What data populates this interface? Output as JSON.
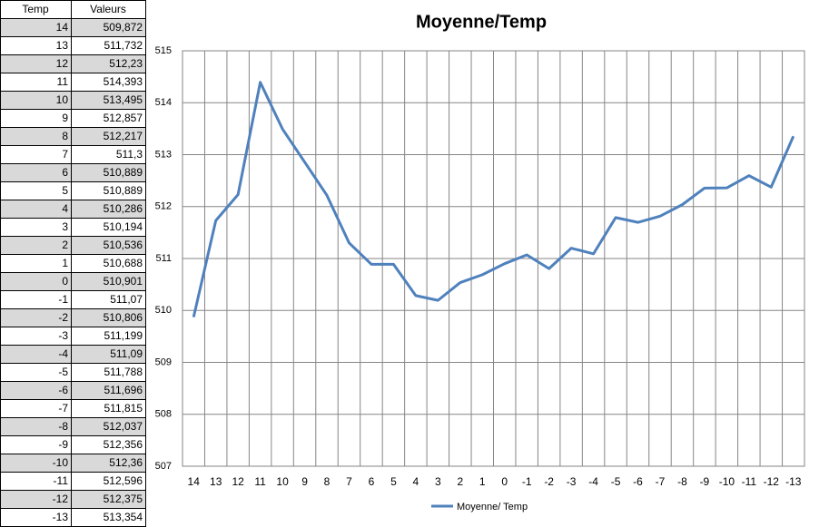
{
  "table": {
    "headers": [
      "Temp",
      "Valeurs"
    ],
    "rows": [
      [
        "14",
        "509,872"
      ],
      [
        "13",
        "511,732"
      ],
      [
        "12",
        "512,23"
      ],
      [
        "11",
        "514,393"
      ],
      [
        "10",
        "513,495"
      ],
      [
        "9",
        "512,857"
      ],
      [
        "8",
        "512,217"
      ],
      [
        "7",
        "511,3"
      ],
      [
        "6",
        "510,889"
      ],
      [
        "5",
        "510,889"
      ],
      [
        "4",
        "510,286"
      ],
      [
        "3",
        "510,194"
      ],
      [
        "2",
        "510,536"
      ],
      [
        "1",
        "510,688"
      ],
      [
        "0",
        "510,901"
      ],
      [
        "-1",
        "511,07"
      ],
      [
        "-2",
        "510,806"
      ],
      [
        "-3",
        "511,199"
      ],
      [
        "-4",
        "511,09"
      ],
      [
        "-5",
        "511,788"
      ],
      [
        "-6",
        "511,696"
      ],
      [
        "-7",
        "511,815"
      ],
      [
        "-8",
        "512,037"
      ],
      [
        "-9",
        "512,356"
      ],
      [
        "-10",
        "512,36"
      ],
      [
        "-11",
        "512,596"
      ],
      [
        "-12",
        "512,375"
      ],
      [
        "-13",
        "513,354"
      ]
    ]
  },
  "chart_data": {
    "type": "line",
    "title": "Moyenne/Temp",
    "categories": [
      "14",
      "13",
      "12",
      "11",
      "10",
      "9",
      "8",
      "7",
      "6",
      "5",
      "4",
      "3",
      "2",
      "1",
      "0",
      "-1",
      "-2",
      "-3",
      "-4",
      "-5",
      "-6",
      "-7",
      "-8",
      "-9",
      "-10",
      "-11",
      "-12",
      "-13"
    ],
    "series": [
      {
        "name": "Moyenne/ Temp",
        "color": "#4f81bd",
        "values": [
          509.872,
          511.732,
          512.23,
          514.393,
          513.495,
          512.857,
          512.217,
          511.3,
          510.889,
          510.889,
          510.286,
          510.194,
          510.536,
          510.688,
          510.901,
          511.07,
          510.806,
          511.199,
          511.09,
          511.788,
          511.696,
          511.815,
          512.037,
          512.356,
          512.36,
          512.596,
          512.375,
          513.354
        ]
      }
    ],
    "ylim": [
      507,
      515
    ],
    "yticks": [
      507,
      508,
      509,
      510,
      511,
      512,
      513,
      514,
      515
    ],
    "grid": true,
    "legend": "bottom"
  }
}
